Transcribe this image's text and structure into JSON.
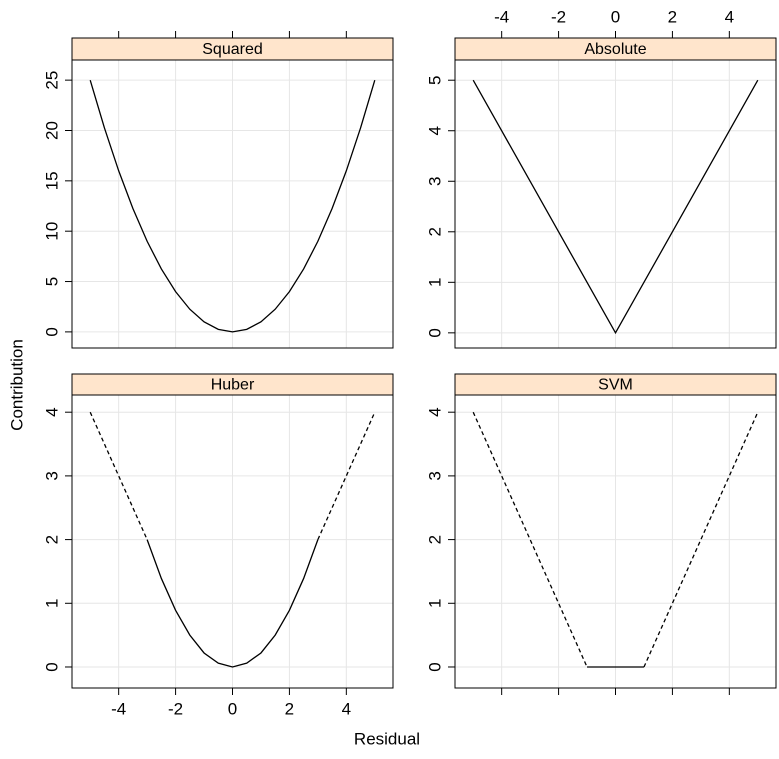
{
  "x_label": "Residual",
  "y_label": "Contribution",
  "chart_data": [
    {
      "type": "line",
      "title": "Squared",
      "x": [
        -5,
        -4.5,
        -4,
        -3.5,
        -3,
        -2.5,
        -2,
        -1.5,
        -1,
        -0.5,
        0,
        0.5,
        1,
        1.5,
        2,
        2.5,
        3,
        3.5,
        4,
        4.5,
        5
      ],
      "series": [
        {
          "color": "#000000",
          "dashed": false,
          "values": [
            25,
            20.25,
            16,
            12.25,
            9,
            6.25,
            4,
            2.25,
            1,
            0.25,
            0,
            0.25,
            1,
            2.25,
            4,
            6.25,
            9,
            12.25,
            16,
            20.25,
            25
          ]
        }
      ],
      "xlim": [
        -5.64,
        5.64
      ],
      "xticks": [
        -4,
        -2,
        0,
        2,
        4
      ],
      "xticks_side": "top",
      "xtick_labels": false,
      "ylim": [
        -1.6,
        27
      ],
      "yticks": [
        0,
        5,
        10,
        15,
        20,
        25
      ],
      "grid": true
    },
    {
      "type": "line",
      "title": "Absolute",
      "x": [
        -5,
        0,
        5
      ],
      "series": [
        {
          "color": "#000000",
          "dashed": false,
          "values": [
            5,
            0,
            5
          ]
        }
      ],
      "xlim": [
        -5.64,
        5.64
      ],
      "xticks": [
        -4,
        -2,
        0,
        2,
        4
      ],
      "xticks_side": "top",
      "xtick_labels": true,
      "ylim": [
        -0.3,
        5.4
      ],
      "yticks": [
        0,
        1,
        2,
        3,
        4,
        5
      ],
      "grid": true
    },
    {
      "type": "line",
      "title": "Huber",
      "x": [
        -5,
        -4.5,
        -4,
        -3.5,
        -3,
        -2.5,
        -2,
        -1.5,
        -1,
        -0.5,
        0,
        0.5,
        1,
        1.5,
        2,
        2.5,
        3,
        3.5,
        4,
        4.5,
        5
      ],
      "series": [
        {
          "color": "#000000",
          "dashed": false,
          "values": [
            null,
            null,
            null,
            null,
            2,
            1.39,
            0.89,
            0.5,
            0.22,
            0.06,
            0,
            0.06,
            0.22,
            0.5,
            0.89,
            1.39,
            2,
            null,
            null,
            null,
            null
          ]
        },
        {
          "color": "#000000",
          "dashed": true,
          "values": [
            4,
            3.5,
            3,
            2.5,
            2,
            null,
            null,
            null,
            null,
            null,
            null,
            null,
            null,
            null,
            null,
            null,
            2,
            2.5,
            3,
            3.5,
            4
          ]
        }
      ],
      "xlim": [
        -5.64,
        5.64
      ],
      "xticks": [
        -4,
        -2,
        0,
        2,
        4
      ],
      "xticks_side": "bottom",
      "xtick_labels": true,
      "ylim": [
        -0.33,
        4.27
      ],
      "yticks": [
        0,
        1,
        2,
        3,
        4
      ],
      "grid": true
    },
    {
      "type": "line",
      "title": "SVM",
      "x": [
        -5,
        -3,
        -1,
        0,
        1,
        3,
        5
      ],
      "series": [
        {
          "color": "#000000",
          "dashed": false,
          "values": [
            null,
            null,
            0,
            0,
            0,
            null,
            null
          ]
        },
        {
          "color": "#000000",
          "dashed": true,
          "values": [
            4,
            2,
            0,
            null,
            0,
            2,
            4
          ]
        }
      ],
      "xlim": [
        -5.64,
        5.64
      ],
      "xticks": [
        -4,
        -2,
        0,
        2,
        4
      ],
      "xticks_side": "bottom",
      "xtick_labels": false,
      "ylim": [
        -0.33,
        4.27
      ],
      "yticks": [
        0,
        1,
        2,
        3,
        4
      ],
      "grid": true
    }
  ]
}
